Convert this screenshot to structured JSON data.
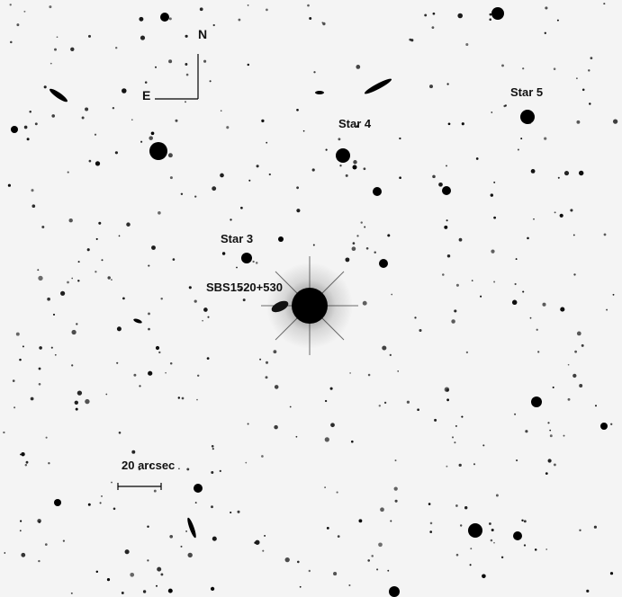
{
  "image": {
    "kind": "astronomical finding chart (inverted grayscale)",
    "colors": {
      "sky": "#f4f4f4",
      "object": "#000000",
      "label": "#111111"
    }
  },
  "compass": {
    "north_label": "N",
    "east_label": "E"
  },
  "target": {
    "label": "SBS1520+530"
  },
  "stars": [
    {
      "label": "Star 3"
    },
    {
      "label": "Star 4"
    },
    {
      "label": "Star 5"
    }
  ],
  "scale_bar": {
    "label": "20 arcsec"
  }
}
